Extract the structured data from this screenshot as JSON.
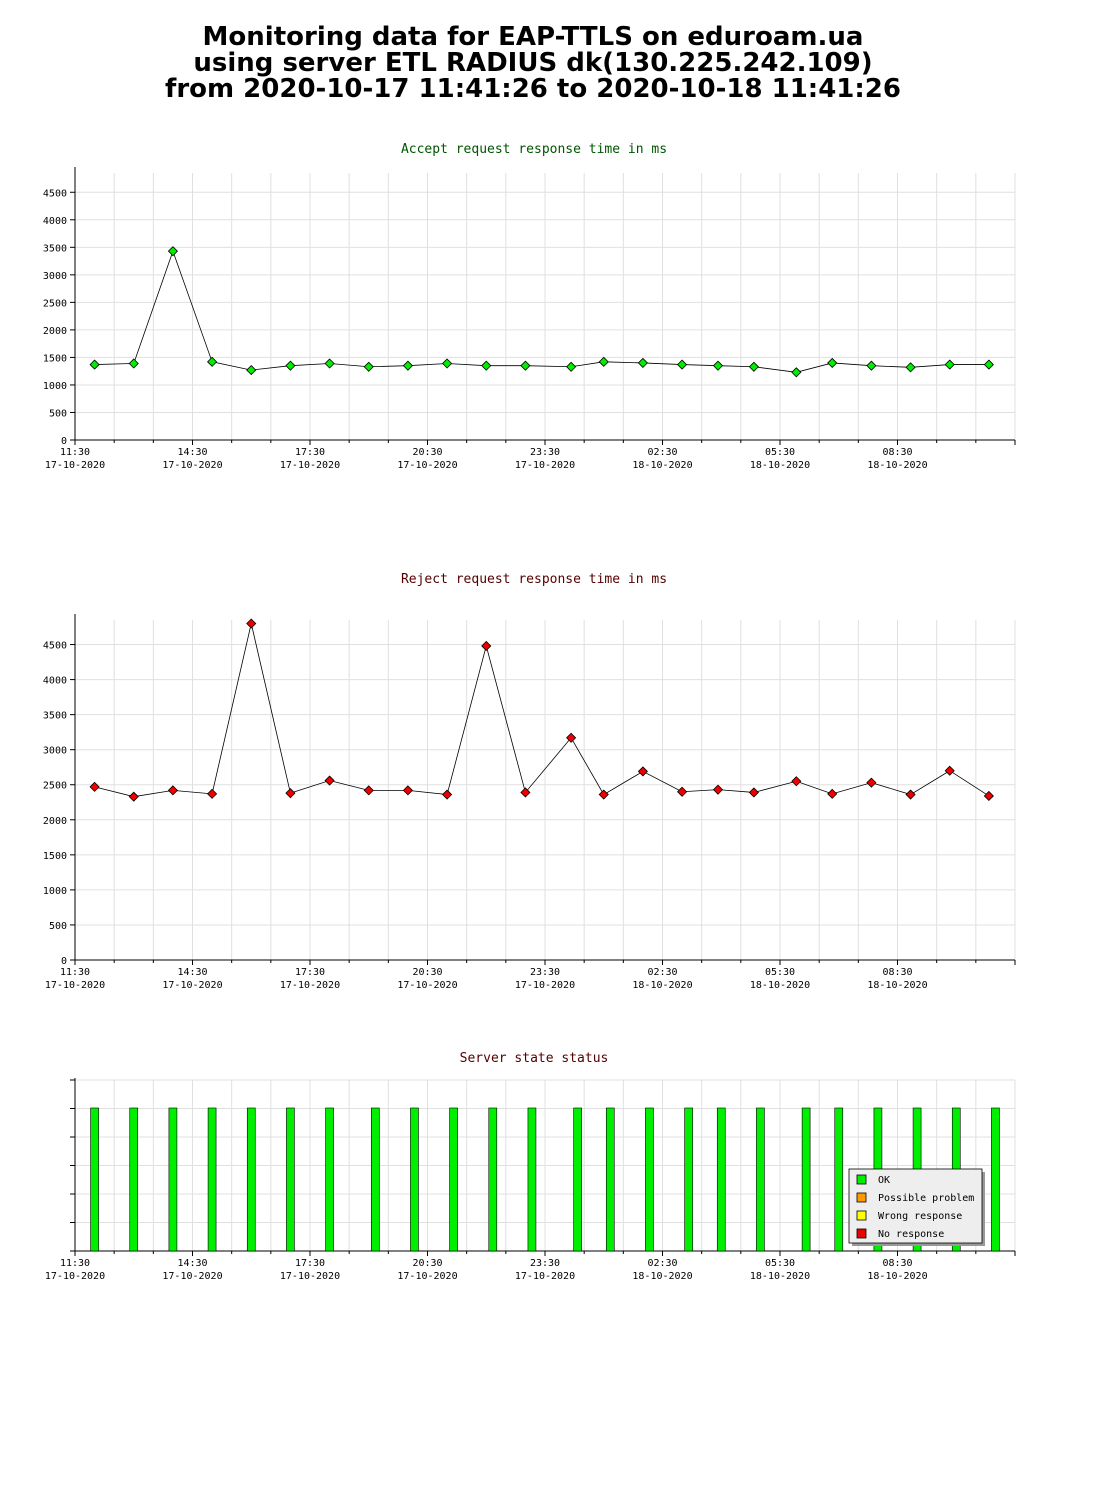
{
  "page": {
    "title_lines": [
      "Monitoring data for EAP-TTLS on eduroam.ua",
      "using server ETL RADIUS dk(130.225.242.109)",
      "from 2020-10-17 11:41:26 to 2020-10-18 11:41:26"
    ]
  },
  "colors": {
    "ok": "#00ee00",
    "possible_problem": "#ff9900",
    "wrong_response": "#ffff00",
    "no_response": "#ee0000",
    "accept_title": "#005500",
    "reject_title": "#550000",
    "status_title": "#550000"
  },
  "chart_data": [
    {
      "type": "line",
      "title": "Accept request response time in ms",
      "xlabel": "",
      "ylabel": "",
      "x_ticks": [
        {
          "time": "11:30",
          "date": "17-10-2020"
        },
        {
          "time": "14:30",
          "date": "17-10-2020"
        },
        {
          "time": "17:30",
          "date": "17-10-2020"
        },
        {
          "time": "20:30",
          "date": "17-10-2020"
        },
        {
          "time": "23:30",
          "date": "17-10-2020"
        },
        {
          "time": "02:30",
          "date": "18-10-2020"
        },
        {
          "time": "05:30",
          "date": "18-10-2020"
        },
        {
          "time": "08:30",
          "date": "18-10-2020"
        }
      ],
      "y_ticks": [
        0,
        500,
        1000,
        1500,
        2000,
        2500,
        3000,
        3500,
        4000,
        4500
      ],
      "ylim": [
        0,
        4850
      ],
      "grid": true,
      "series": [
        {
          "color": "#00ee00",
          "points": [
            [
              "2020-10-17 12:00",
              1370
            ],
            [
              "2020-10-17 13:00",
              1390
            ],
            [
              "2020-10-17 14:00",
              3430
            ],
            [
              "2020-10-17 15:00",
              1420
            ],
            [
              "2020-10-17 16:00",
              1270
            ],
            [
              "2020-10-17 17:00",
              1350
            ],
            [
              "2020-10-17 18:00",
              1390
            ],
            [
              "2020-10-17 19:00",
              1330
            ],
            [
              "2020-10-17 20:00",
              1350
            ],
            [
              "2020-10-17 21:00",
              1390
            ],
            [
              "2020-10-17 22:00",
              1350
            ],
            [
              "2020-10-17 23:00",
              1350
            ],
            [
              "2020-10-18 00:10",
              1330
            ],
            [
              "2020-10-18 01:00",
              1420
            ],
            [
              "2020-10-18 02:00",
              1400
            ],
            [
              "2020-10-18 03:00",
              1370
            ],
            [
              "2020-10-18 03:55",
              1350
            ],
            [
              "2020-10-18 04:50",
              1330
            ],
            [
              "2020-10-18 05:55",
              1230
            ],
            [
              "2020-10-18 06:50",
              1400
            ],
            [
              "2020-10-18 07:50",
              1350
            ],
            [
              "2020-10-18 08:50",
              1320
            ],
            [
              "2020-10-18 09:50",
              1370
            ],
            [
              "2020-10-18 10:50",
              1370
            ]
          ]
        }
      ]
    },
    {
      "type": "line",
      "title": "Reject request response time in ms",
      "xlabel": "",
      "ylabel": "",
      "x_ticks": [
        {
          "time": "11:30",
          "date": "17-10-2020"
        },
        {
          "time": "14:30",
          "date": "17-10-2020"
        },
        {
          "time": "17:30",
          "date": "17-10-2020"
        },
        {
          "time": "20:30",
          "date": "17-10-2020"
        },
        {
          "time": "23:30",
          "date": "17-10-2020"
        },
        {
          "time": "02:30",
          "date": "18-10-2020"
        },
        {
          "time": "05:30",
          "date": "18-10-2020"
        },
        {
          "time": "08:30",
          "date": "18-10-2020"
        }
      ],
      "y_ticks": [
        0,
        500,
        1000,
        1500,
        2000,
        2500,
        3000,
        3500,
        4000,
        4500
      ],
      "ylim": [
        0,
        4850
      ],
      "grid": true,
      "series": [
        {
          "color": "#ee0000",
          "points": [
            [
              "2020-10-17 12:00",
              2470
            ],
            [
              "2020-10-17 13:00",
              2330
            ],
            [
              "2020-10-17 14:00",
              2420
            ],
            [
              "2020-10-17 15:00",
              2370
            ],
            [
              "2020-10-17 16:00",
              4800
            ],
            [
              "2020-10-17 17:00",
              2380
            ],
            [
              "2020-10-17 18:00",
              2560
            ],
            [
              "2020-10-17 19:00",
              2420
            ],
            [
              "2020-10-17 20:00",
              2420
            ],
            [
              "2020-10-17 21:00",
              2360
            ],
            [
              "2020-10-17 22:00",
              4480
            ],
            [
              "2020-10-17 23:00",
              2390
            ],
            [
              "2020-10-18 00:10",
              3170
            ],
            [
              "2020-10-18 01:00",
              2360
            ],
            [
              "2020-10-18 02:00",
              2690
            ],
            [
              "2020-10-18 03:00",
              2400
            ],
            [
              "2020-10-18 03:55",
              2430
            ],
            [
              "2020-10-18 04:50",
              2390
            ],
            [
              "2020-10-18 05:55",
              2550
            ],
            [
              "2020-10-18 06:50",
              2370
            ],
            [
              "2020-10-18 07:50",
              2530
            ],
            [
              "2020-10-18 08:50",
              2360
            ],
            [
              "2020-10-18 09:50",
              2700
            ],
            [
              "2020-10-18 10:50",
              2340
            ]
          ]
        }
      ]
    },
    {
      "type": "bar",
      "title": "Server state status",
      "x_ticks": [
        {
          "time": "11:30",
          "date": "17-10-2020"
        },
        {
          "time": "14:30",
          "date": "17-10-2020"
        },
        {
          "time": "17:30",
          "date": "17-10-2020"
        },
        {
          "time": "20:30",
          "date": "17-10-2020"
        },
        {
          "time": "23:30",
          "date": "17-10-2020"
        },
        {
          "time": "02:30",
          "date": "18-10-2020"
        },
        {
          "time": "05:30",
          "date": "18-10-2020"
        },
        {
          "time": "08:30",
          "date": "18-10-2020"
        }
      ],
      "grid": true,
      "legend": {
        "placement": "bottom-right",
        "entries": [
          {
            "label": "OK",
            "color": "#00ee00"
          },
          {
            "label": "Possible problem",
            "color": "#ff9900"
          },
          {
            "label": "Wrong response",
            "color": "#ffff00"
          },
          {
            "label": "No response",
            "color": "#ee0000"
          }
        ]
      },
      "bars": [
        [
          "2020-10-17 12:00",
          "OK"
        ],
        [
          "2020-10-17 13:00",
          "OK"
        ],
        [
          "2020-10-17 14:00",
          "OK"
        ],
        [
          "2020-10-17 15:00",
          "OK"
        ],
        [
          "2020-10-17 16:00",
          "OK"
        ],
        [
          "2020-10-17 17:00",
          "OK"
        ],
        [
          "2020-10-17 18:00",
          "OK"
        ],
        [
          "2020-10-17 19:10",
          "OK"
        ],
        [
          "2020-10-17 20:10",
          "OK"
        ],
        [
          "2020-10-17 21:10",
          "OK"
        ],
        [
          "2020-10-17 22:10",
          "OK"
        ],
        [
          "2020-10-17 23:10",
          "OK"
        ],
        [
          "2020-10-18 00:20",
          "OK"
        ],
        [
          "2020-10-18 01:10",
          "OK"
        ],
        [
          "2020-10-18 02:10",
          "OK"
        ],
        [
          "2020-10-18 03:10",
          "OK"
        ],
        [
          "2020-10-18 04:00",
          "OK"
        ],
        [
          "2020-10-18 05:00",
          "OK"
        ],
        [
          "2020-10-18 06:10",
          "OK"
        ],
        [
          "2020-10-18 07:00",
          "OK"
        ],
        [
          "2020-10-18 08:00",
          "OK"
        ],
        [
          "2020-10-18 09:00",
          "OK"
        ],
        [
          "2020-10-18 10:00",
          "OK"
        ],
        [
          "2020-10-18 11:00",
          "OK"
        ]
      ]
    }
  ]
}
